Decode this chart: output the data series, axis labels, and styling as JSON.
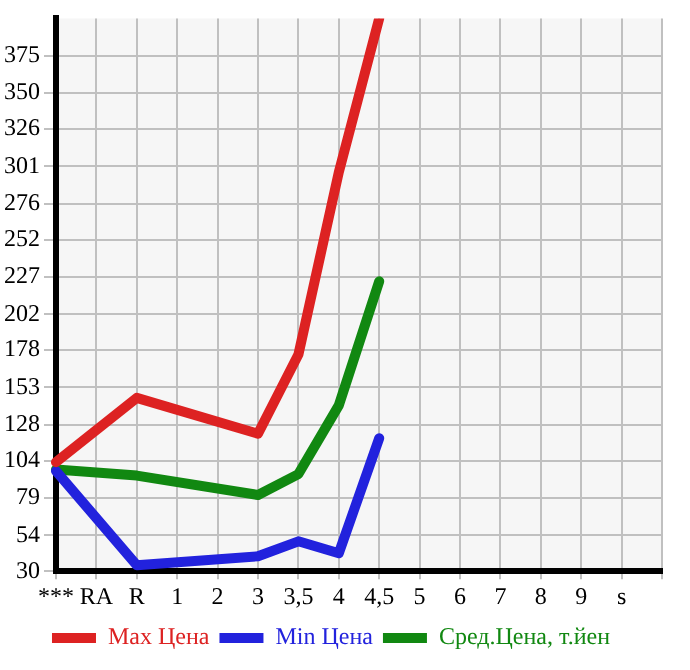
{
  "chart_data": {
    "type": "line",
    "categories": [
      "***",
      "RA",
      "R",
      "1",
      "2",
      "3",
      "3,5",
      "4",
      "4,5",
      "5",
      "6",
      "7",
      "8",
      "9",
      "s",
      null
    ],
    "series": [
      {
        "name": "Max Цена",
        "color": "#dd2222",
        "values": [
          103,
          null,
          146,
          null,
          null,
          122,
          175,
          297,
          400,
          null,
          null,
          null,
          null,
          null,
          null,
          null
        ]
      },
      {
        "name": "Min Цена",
        "color": "#2222dd",
        "values": [
          97,
          null,
          34,
          null,
          null,
          40,
          50,
          42,
          119,
          null,
          null,
          null,
          null,
          null,
          null,
          null
        ]
      },
      {
        "name": "Сред.Цена, т.йен",
        "color": "#118811",
        "values": [
          98,
          null,
          94,
          null,
          null,
          81,
          95,
          141,
          224,
          null,
          null,
          null,
          null,
          null,
          null,
          null
        ]
      }
    ],
    "ylim": [
      30,
      400
    ],
    "yticks": [
      30,
      54,
      79,
      104,
      128,
      153,
      178,
      202,
      227,
      252,
      276,
      301,
      326,
      350,
      375
    ],
    "grid": true,
    "legend": "bottom",
    "marker": "none",
    "line_style": "solid"
  }
}
